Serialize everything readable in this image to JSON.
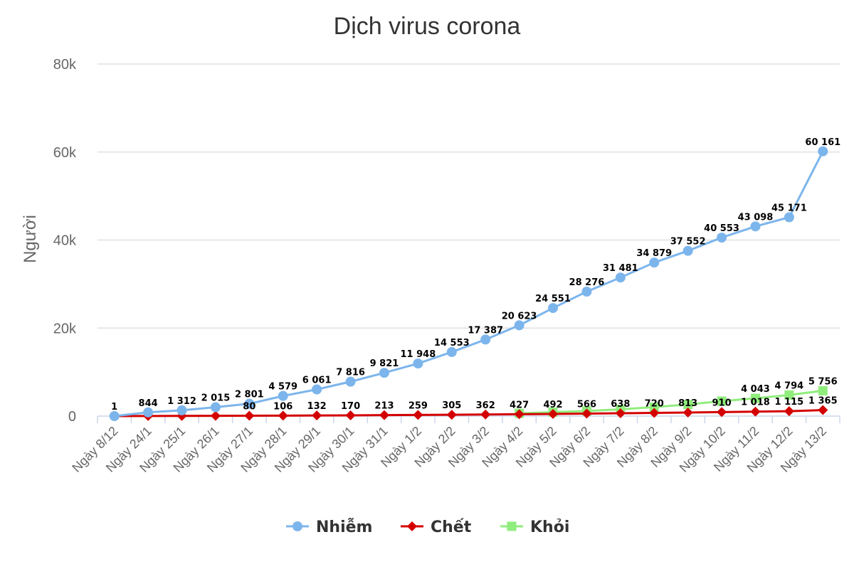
{
  "chart_data": {
    "type": "line",
    "title": "Dịch virus corona",
    "xlabel": "",
    "ylabel": "Người",
    "ylim": [
      0,
      80000
    ],
    "yticks": [
      0,
      20000,
      40000,
      60000,
      80000
    ],
    "ytick_labels": [
      "0",
      "20k",
      "40k",
      "60k",
      "80k"
    ],
    "grid": true,
    "legend_position": "bottom-center",
    "categories": [
      "Ngày 8/12",
      "Ngày 24/1",
      "Ngày 25/1",
      "Ngày 26/1",
      "Ngày 27/1",
      "Ngày 28/1",
      "Ngày 29/1",
      "Ngày 30/1",
      "Ngày 31/1",
      "Ngày 1/2",
      "Ngày 2/2",
      "Ngày 3/2",
      "Ngày 4/2",
      "Ngày 5/2",
      "Ngày 6/2",
      "Ngày 7/2",
      "Ngày 8/2",
      "Ngày 9/2",
      "Ngày 10/2",
      "Ngày 11/2",
      "Ngày 12/2",
      "Ngày 13/2"
    ],
    "series": [
      {
        "name": "Nhiễm",
        "color": "#7cb5ec",
        "marker": "circle",
        "values": [
          1,
          844,
          1312,
          2015,
          2801,
          4579,
          6061,
          7816,
          9821,
          11948,
          14553,
          17387,
          20623,
          24551,
          28276,
          31481,
          34879,
          37552,
          40553,
          43098,
          45171,
          60161
        ],
        "labels": [
          "1",
          "844",
          "1 312",
          "2 015",
          "2 801",
          "4 579",
          "6 061",
          "7 816",
          "9 821",
          "11 948",
          "14 553",
          "17 387",
          "20 623",
          "24 551",
          "28 276",
          "31 481",
          "34 879",
          "37 552",
          "40 553",
          "43 098",
          "45 171",
          "60 161"
        ]
      },
      {
        "name": "Chết",
        "color": "#d40000",
        "marker": "diamond",
        "values": [
          0,
          25,
          41,
          56,
          80,
          106,
          132,
          170,
          213,
          259,
          305,
          362,
          427,
          492,
          566,
          638,
          720,
          813,
          910,
          1018,
          1115,
          1365
        ],
        "labels": [
          "",
          "",
          "",
          "",
          "80",
          "106",
          "132",
          "170",
          "213",
          "259",
          "305",
          "362",
          "427",
          "492",
          "566",
          "638",
          "720",
          "813",
          "910",
          "1 018",
          "1 115",
          "1 365"
        ]
      },
      {
        "name": "Khỏi",
        "color": "#90ed7d",
        "marker": "square",
        "values": [
          null,
          null,
          null,
          null,
          null,
          null,
          null,
          null,
          null,
          null,
          null,
          null,
          632,
          892,
          1153,
          1540,
          2050,
          2650,
          3400,
          4043,
          4794,
          5756
        ],
        "labels": [
          "",
          "",
          "",
          "",
          "",
          "",
          "",
          "",
          "",
          "",
          "",
          "",
          "",
          "",
          "",
          "",
          "",
          "",
          "",
          "4 043",
          "4 794",
          "5 756"
        ]
      }
    ]
  }
}
